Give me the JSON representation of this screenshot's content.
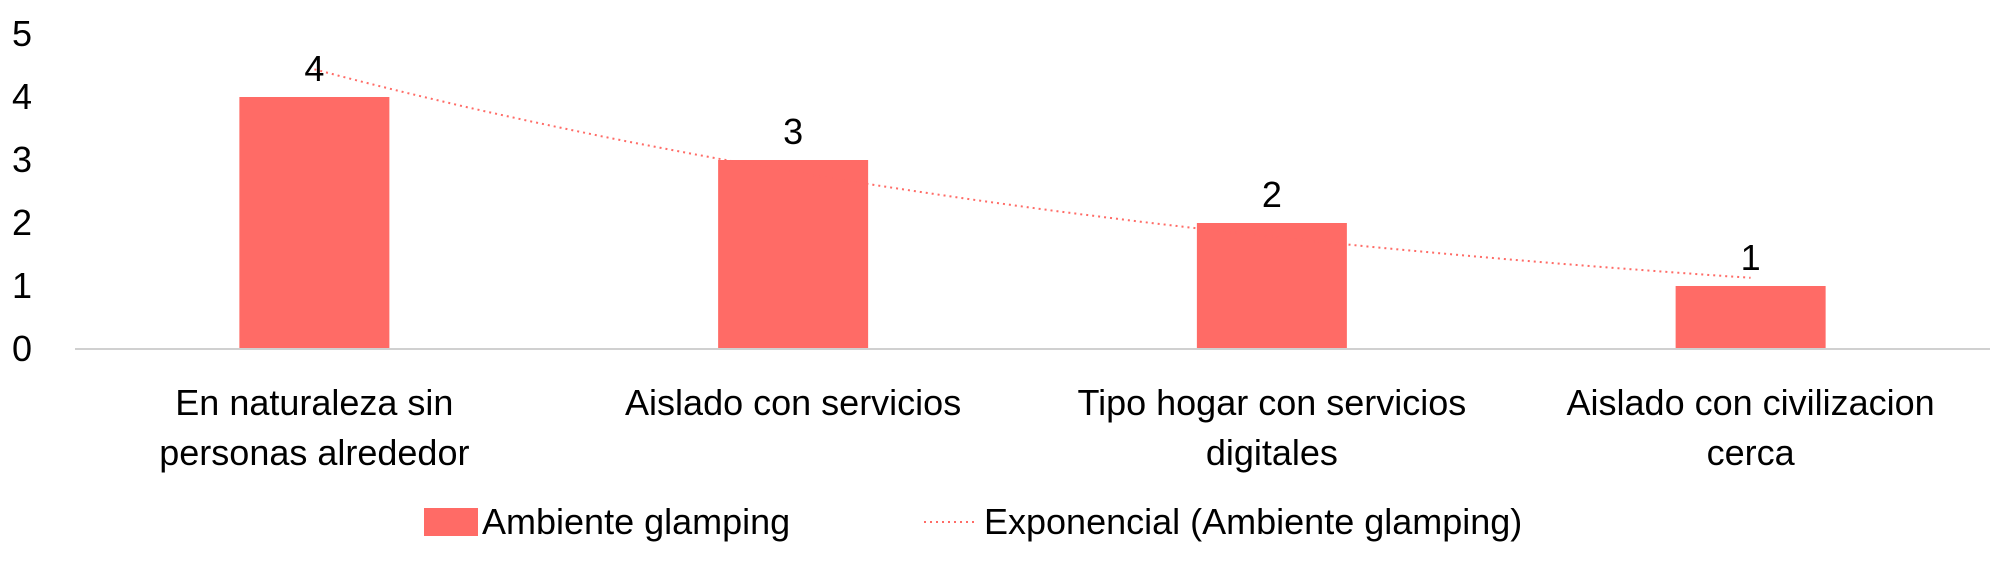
{
  "chart_data": {
    "type": "bar",
    "categories": [
      [
        "En naturaleza sin",
        "personas alrededor"
      ],
      [
        "Aislado con servicios"
      ],
      [
        "Tipo hogar con servicios",
        "digitales"
      ],
      [
        "Aislado con civilizacion",
        "cerca"
      ]
    ],
    "series": [
      {
        "name": "Ambiente glamping",
        "values": [
          4,
          3,
          2,
          1
        ],
        "color": "#FF6B66"
      }
    ],
    "trendline": {
      "name": "Exponencial (Ambiente glamping)",
      "type": "exponential",
      "values": [
        4.44,
        2.87,
        1.81,
        1.13
      ],
      "color": "#FF6B66",
      "style": "dotted"
    },
    "data_labels": [
      "4",
      "3",
      "2",
      "1"
    ],
    "y_ticks": [
      "0",
      "1",
      "2",
      "3",
      "4",
      "5"
    ],
    "ylim": [
      0,
      5
    ],
    "title": "",
    "xlabel": "",
    "ylabel": "",
    "grid": false,
    "legend_position": "bottom"
  }
}
